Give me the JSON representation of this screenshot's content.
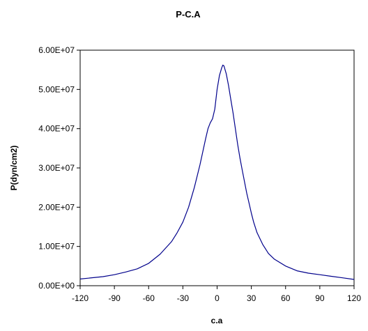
{
  "chart_data": {
    "type": "line",
    "title": "P-C.A",
    "xlabel": "c.a",
    "ylabel": "P(dyn/cm2)",
    "xlim": [
      -120,
      120
    ],
    "ylim": [
      0,
      60000000
    ],
    "x_ticks": [
      -120,
      -90,
      -60,
      -30,
      0,
      30,
      60,
      90,
      120
    ],
    "x_tick_labels": [
      "-120",
      "-90",
      "-60",
      "-30",
      "0",
      "30",
      "60",
      "90",
      "120"
    ],
    "y_ticks": [
      0,
      10000000,
      20000000,
      30000000,
      40000000,
      50000000,
      60000000
    ],
    "y_tick_labels": [
      "0.00E+00",
      "1.00E+07",
      "2.00E+07",
      "3.00E+07",
      "4.00E+07",
      "5.00E+07",
      "6.00E+07"
    ],
    "grid": false,
    "legend": "none",
    "line_color": "#00008B",
    "series": [
      {
        "x": [
          -120,
          -100,
          -90,
          -80,
          -70,
          -60,
          -50,
          -40,
          -35,
          -30,
          -25,
          -20,
          -15,
          -10,
          -8,
          -6,
          -4,
          -2,
          0,
          2,
          4,
          5,
          6,
          8,
          10,
          12,
          14,
          16,
          18,
          20,
          22,
          24,
          26,
          28,
          30,
          32,
          35,
          40,
          45,
          50,
          60,
          70,
          80,
          90,
          100,
          110,
          120
        ],
        "y": [
          1700000,
          2300000,
          2800000,
          3500000,
          4300000,
          5700000,
          8000000,
          11200000,
          13500000,
          16200000,
          20000000,
          25000000,
          30800000,
          37500000,
          40000000,
          41500000,
          42500000,
          45000000,
          50000000,
          53500000,
          55500000,
          56200000,
          56000000,
          54000000,
          51000000,
          47500000,
          44000000,
          40000000,
          36000000,
          32500000,
          29500000,
          26500000,
          23500000,
          21000000,
          18500000,
          16200000,
          13500000,
          10500000,
          8200000,
          6800000,
          5000000,
          3800000,
          3200000,
          2800000,
          2400000,
          2000000,
          1600000
        ]
      }
    ]
  }
}
